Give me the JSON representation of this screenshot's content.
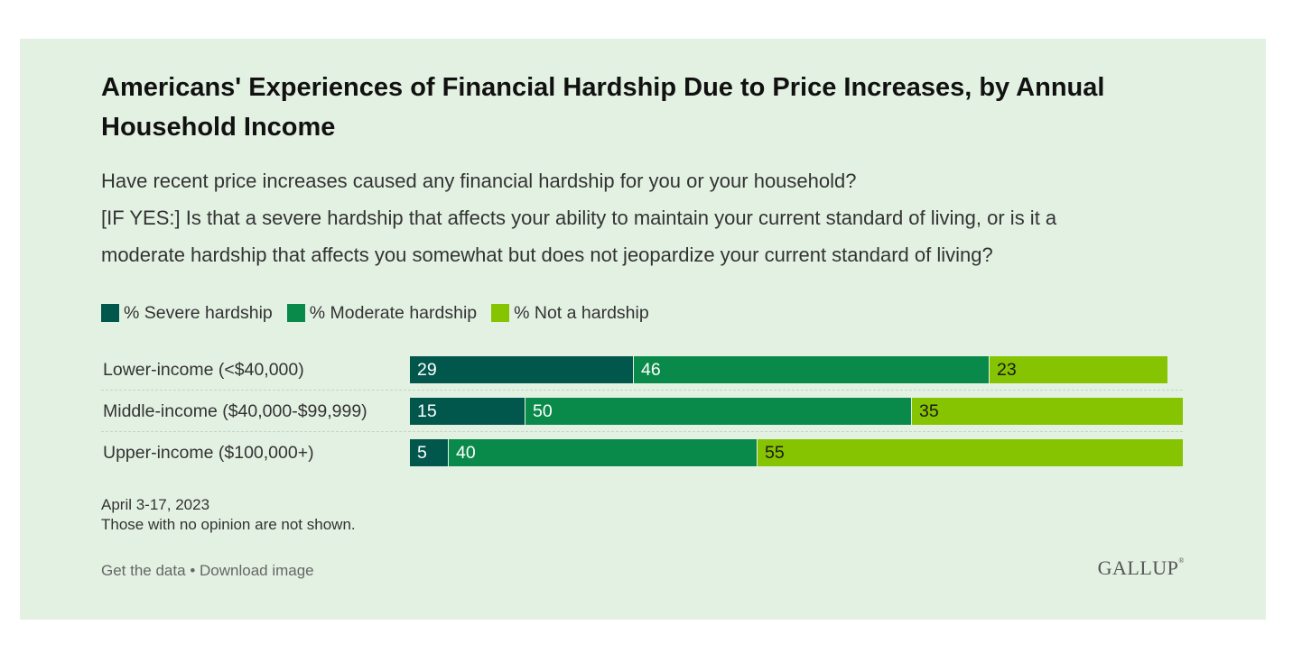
{
  "chart_data": {
    "type": "bar",
    "stacked": true,
    "orientation": "horizontal",
    "title": "Americans' Experiences of Financial Hardship Due to Price Increases, by Annual Household Income",
    "subtitle_lines": [
      "Have recent price increases caused any financial hardship for you or your household?",
      "[IF YES:] Is that a severe hardship that affects your ability to maintain your current standard of living, or is it a",
      "moderate hardship that affects you somewhat but does not jeopardize your current standard of living?"
    ],
    "categories": [
      "Lower-income (<$40,000)",
      "Middle-income ($40,000-$99,999)",
      "Upper-income ($100,000+)"
    ],
    "series": [
      {
        "name": "% Severe hardship",
        "values": [
          29,
          15,
          5
        ],
        "color": "#02574c",
        "label_color": "#ffffff"
      },
      {
        "name": "% Moderate hardship",
        "values": [
          46,
          50,
          40
        ],
        "color": "#0a8a4a",
        "label_color": "#ffffff"
      },
      {
        "name": "% Not a hardship",
        "values": [
          23,
          35,
          55
        ],
        "color": "#86c300",
        "label_color": "#1a1a1a"
      }
    ],
    "xlim": [
      0,
      100
    ],
    "legend_position": "top-left"
  },
  "notes": {
    "date": "April 3-17, 2023",
    "footnote": "Those with no opinion are not shown."
  },
  "links": {
    "get_data": "Get the data",
    "separator": "•",
    "download": "Download image"
  },
  "brand": {
    "name": "GALLUP",
    "mark": "®"
  }
}
